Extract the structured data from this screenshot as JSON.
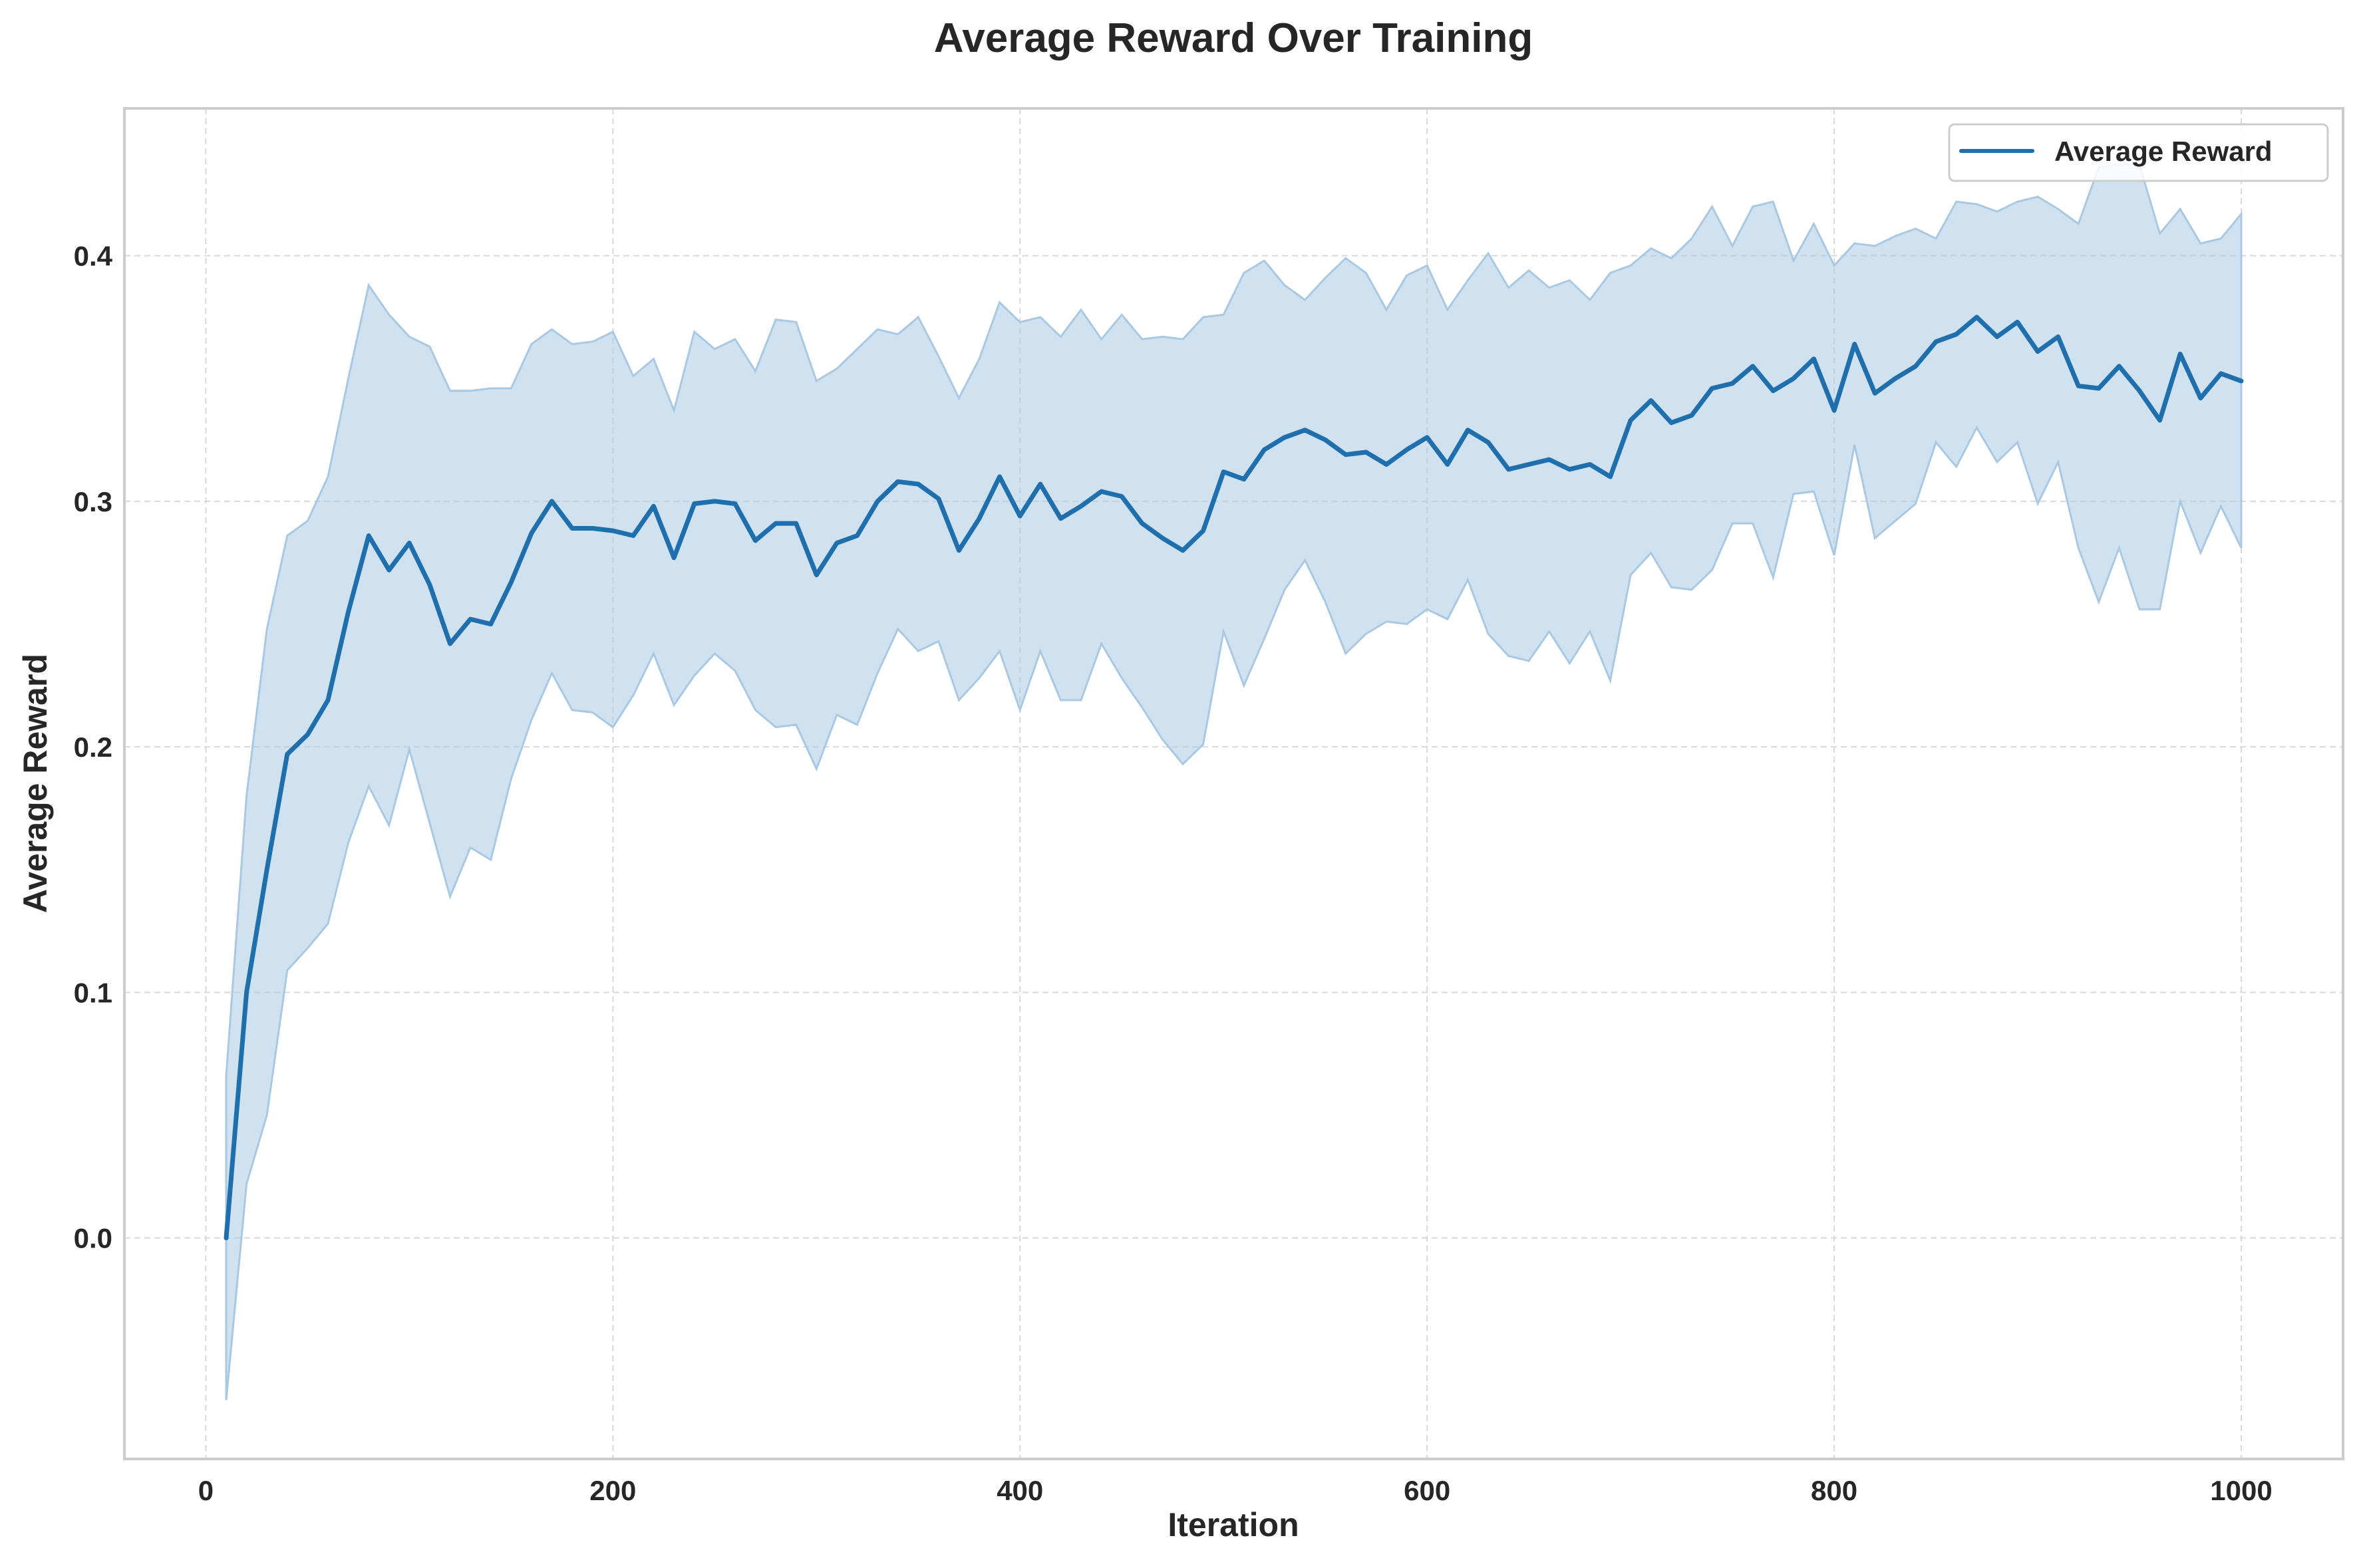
{
  "chart_data": {
    "type": "line",
    "title": "Average Reward Over Training",
    "xlabel": "Iteration",
    "ylabel": "Average Reward",
    "xlim": [
      -40,
      1050
    ],
    "ylim": [
      -0.09,
      0.46
    ],
    "x_ticks": [
      0,
      200,
      400,
      600,
      800,
      1000
    ],
    "y_ticks": [
      0.0,
      0.1,
      0.2,
      0.3,
      0.4
    ],
    "x_tick_labels": [
      "0",
      "200",
      "400",
      "600",
      "800",
      "1000"
    ],
    "y_tick_labels": [
      "0.0",
      "0.1",
      "0.2",
      "0.3",
      "0.4"
    ],
    "grid": true,
    "legend": {
      "position": "top-right",
      "entries": [
        "Average Reward"
      ]
    },
    "colors": {
      "line": "#1f6fad",
      "band": "#a9c9e3",
      "grid": "#d9d9d9",
      "frame": "#cccccc",
      "text": "#262626"
    },
    "x": [
      10,
      20,
      30,
      40,
      50,
      60,
      70,
      80,
      90,
      100,
      110,
      120,
      130,
      140,
      150,
      160,
      170,
      180,
      190,
      200,
      210,
      220,
      230,
      240,
      250,
      260,
      270,
      280,
      290,
      300,
      310,
      320,
      330,
      340,
      350,
      360,
      370,
      380,
      390,
      400,
      410,
      420,
      430,
      440,
      450,
      460,
      470,
      480,
      490,
      500,
      510,
      520,
      530,
      540,
      550,
      560,
      570,
      580,
      590,
      600,
      610,
      620,
      630,
      640,
      650,
      660,
      670,
      680,
      690,
      700,
      710,
      720,
      730,
      740,
      750,
      760,
      770,
      780,
      790,
      800,
      810,
      820,
      830,
      840,
      850,
      860,
      870,
      880,
      890,
      900,
      910,
      920,
      930,
      940,
      950,
      960,
      970,
      980,
      990,
      1000
    ],
    "series": [
      {
        "name": "Average Reward",
        "values": [
          0.0,
          0.1,
          0.15,
          0.197,
          0.205,
          0.219,
          0.255,
          0.286,
          0.272,
          0.283,
          0.266,
          0.242,
          0.252,
          0.25,
          0.267,
          0.287,
          0.3,
          0.289,
          0.289,
          0.288,
          0.286,
          0.298,
          0.277,
          0.299,
          0.3,
          0.299,
          0.284,
          0.291,
          0.291,
          0.27,
          0.283,
          0.286,
          0.3,
          0.308,
          0.307,
          0.301,
          0.28,
          0.293,
          0.31,
          0.294,
          0.307,
          0.293,
          0.298,
          0.304,
          0.302,
          0.291,
          0.285,
          0.28,
          0.288,
          0.312,
          0.309,
          0.321,
          0.326,
          0.329,
          0.325,
          0.319,
          0.32,
          0.315,
          0.321,
          0.326,
          0.315,
          0.329,
          0.324,
          0.313,
          0.315,
          0.317,
          0.313,
          0.315,
          0.31,
          0.333,
          0.341,
          0.332,
          0.335,
          0.346,
          0.348,
          0.355,
          0.345,
          0.35,
          0.358,
          0.337,
          0.364,
          0.344,
          0.35,
          0.355,
          0.365,
          0.368,
          0.375,
          0.367,
          0.373,
          0.361,
          0.367,
          0.347,
          0.346,
          0.355,
          0.345,
          0.333,
          0.36,
          0.342,
          0.352,
          0.349
        ],
        "upper": [
          0.066,
          0.18,
          0.248,
          0.286,
          0.292,
          0.31,
          0.35,
          0.388,
          0.376,
          0.367,
          0.363,
          0.345,
          0.345,
          0.346,
          0.346,
          0.364,
          0.37,
          0.364,
          0.365,
          0.369,
          0.351,
          0.358,
          0.337,
          0.369,
          0.362,
          0.366,
          0.353,
          0.374,
          0.373,
          0.349,
          0.354,
          0.362,
          0.37,
          0.368,
          0.375,
          0.359,
          0.342,
          0.358,
          0.381,
          0.373,
          0.375,
          0.367,
          0.378,
          0.366,
          0.376,
          0.366,
          0.367,
          0.366,
          0.375,
          0.376,
          0.393,
          0.398,
          0.388,
          0.382,
          0.391,
          0.399,
          0.393,
          0.378,
          0.392,
          0.396,
          0.378,
          0.39,
          0.401,
          0.387,
          0.394,
          0.387,
          0.39,
          0.382,
          0.393,
          0.396,
          0.403,
          0.399,
          0.407,
          0.42,
          0.404,
          0.42,
          0.422,
          0.398,
          0.413,
          0.396,
          0.405,
          0.404,
          0.408,
          0.411,
          0.407,
          0.422,
          0.421,
          0.418,
          0.422,
          0.424,
          0.419,
          0.413,
          0.436,
          0.437,
          0.437,
          0.409,
          0.419,
          0.405,
          0.407,
          0.417
        ],
        "lower": [
          -0.066,
          0.022,
          0.05,
          0.109,
          0.118,
          0.128,
          0.161,
          0.184,
          0.168,
          0.199,
          0.169,
          0.139,
          0.159,
          0.154,
          0.187,
          0.211,
          0.23,
          0.215,
          0.214,
          0.208,
          0.221,
          0.238,
          0.217,
          0.229,
          0.238,
          0.231,
          0.215,
          0.208,
          0.209,
          0.191,
          0.213,
          0.209,
          0.23,
          0.248,
          0.239,
          0.243,
          0.219,
          0.228,
          0.239,
          0.215,
          0.239,
          0.219,
          0.219,
          0.242,
          0.228,
          0.216,
          0.203,
          0.193,
          0.201,
          0.247,
          0.225,
          0.244,
          0.264,
          0.276,
          0.259,
          0.238,
          0.246,
          0.251,
          0.25,
          0.256,
          0.252,
          0.268,
          0.246,
          0.237,
          0.235,
          0.247,
          0.234,
          0.247,
          0.227,
          0.27,
          0.279,
          0.265,
          0.264,
          0.272,
          0.291,
          0.291,
          0.269,
          0.303,
          0.304,
          0.278,
          0.323,
          0.285,
          0.292,
          0.299,
          0.324,
          0.314,
          0.33,
          0.316,
          0.324,
          0.299,
          0.316,
          0.281,
          0.259,
          0.281,
          0.256,
          0.256,
          0.3,
          0.279,
          0.298,
          0.281
        ]
      }
    ]
  }
}
